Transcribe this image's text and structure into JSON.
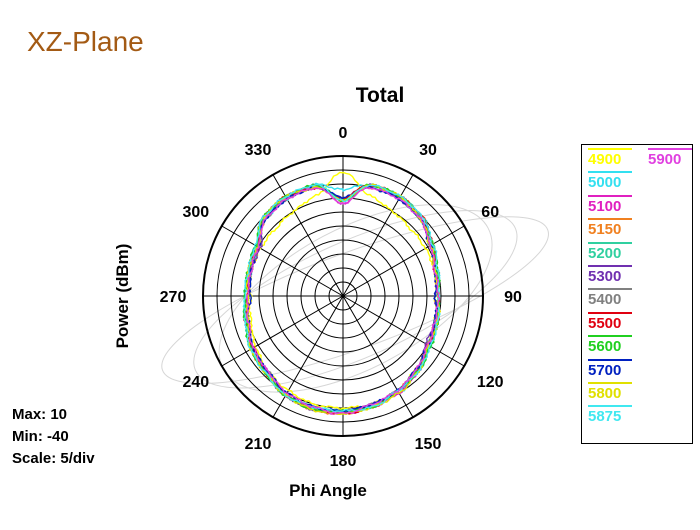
{
  "slide_title": "XZ-Plane",
  "chart_data": {
    "type": "polar-line",
    "title": "Total",
    "xlabel": "Phi Angle",
    "ylabel": "Power  (dBm)",
    "angle_ticks": [
      "0",
      "330",
      "300",
      "270",
      "240",
      "210",
      "180",
      "150",
      "120",
      "90",
      "60",
      "30"
    ],
    "r_range": [
      -40,
      10
    ],
    "r_step": 5,
    "grid": true,
    "legend_position": "right",
    "series": [
      {
        "name": "4900",
        "color": "#ffff00",
        "values": [
          4,
          -3,
          -5,
          -6,
          -6,
          -6,
          -7,
          -6,
          -4,
          -2,
          -1,
          0,
          0,
          0,
          -1,
          -3,
          -5,
          -6,
          -7,
          -6,
          -6,
          -6,
          -5,
          -3
        ]
      },
      {
        "name": "5000",
        "color": "#33e0f0",
        "values": [
          -2,
          1,
          0,
          -1,
          -5,
          -6,
          -6,
          -4,
          -3,
          -1,
          1,
          1,
          1,
          0,
          0,
          -2,
          -5,
          -6,
          -6,
          -5,
          -4,
          -1,
          0,
          1
        ]
      },
      {
        "name": "5100",
        "color": "#e020c0",
        "values": [
          -7,
          0,
          1,
          0,
          -5,
          -5,
          -6,
          -5,
          -3,
          -2,
          1,
          2,
          2,
          1,
          0,
          -2,
          -5,
          -6,
          -6,
          -6,
          -4,
          -1,
          1,
          1
        ]
      },
      {
        "name": "5150",
        "color": "#f08020",
        "values": [
          -6,
          0,
          1,
          -1,
          -5,
          -6,
          -6,
          -5,
          -2,
          -1,
          1,
          2,
          2,
          1,
          -1,
          -3,
          -5,
          -6,
          -6,
          -6,
          -3,
          0,
          1,
          0
        ]
      },
      {
        "name": "5200",
        "color": "#30d0a0",
        "values": [
          -6,
          1,
          0,
          0,
          -4,
          -5,
          -5,
          -4,
          -2,
          -1,
          1,
          1,
          1,
          1,
          -1,
          -2,
          -4,
          -5,
          -6,
          -6,
          -3,
          0,
          1,
          1
        ]
      },
      {
        "name": "5300",
        "color": "#7030b0",
        "values": [
          -5,
          0,
          1,
          0,
          -6,
          -6,
          -6,
          -5,
          -3,
          -1,
          1,
          2,
          1,
          0,
          -1,
          -2,
          -6,
          -6,
          -7,
          -6,
          -4,
          -1,
          0,
          1
        ]
      },
      {
        "name": "5400",
        "color": "#808080",
        "values": [
          -6,
          1,
          0,
          -1,
          -5,
          -6,
          -6,
          -5,
          -3,
          -2,
          1,
          2,
          1,
          0,
          -1,
          -3,
          -5,
          -6,
          -6,
          -5,
          -4,
          -1,
          0,
          1
        ]
      },
      {
        "name": "5500",
        "color": "#e00010",
        "values": [
          -5,
          0,
          1,
          0,
          -5,
          -5,
          -6,
          -4,
          -3,
          -1,
          1,
          1,
          2,
          1,
          -1,
          -2,
          -5,
          -5,
          -6,
          -6,
          -3,
          0,
          1,
          1
        ]
      },
      {
        "name": "5600",
        "color": "#20d020",
        "values": [
          -6,
          1,
          1,
          0,
          -4,
          -5,
          -5,
          -4,
          -2,
          -1,
          1,
          2,
          1,
          1,
          -1,
          -2,
          -4,
          -5,
          -6,
          -5,
          -3,
          -1,
          1,
          1
        ]
      },
      {
        "name": "5700",
        "color": "#0020c0",
        "values": [
          -5,
          0,
          0,
          -1,
          -5,
          -6,
          -7,
          -5,
          -3,
          -2,
          0,
          1,
          1,
          0,
          -1,
          -3,
          -5,
          -6,
          -7,
          -6,
          -4,
          -1,
          0,
          0
        ]
      },
      {
        "name": "5800",
        "color": "#e0e000",
        "values": [
          -6,
          0,
          1,
          0,
          -5,
          -5,
          -6,
          -5,
          -2,
          -1,
          1,
          2,
          2,
          1,
          0,
          -2,
          -5,
          -5,
          -6,
          -6,
          -4,
          -1,
          1,
          1
        ]
      },
      {
        "name": "5875",
        "color": "#40e8f0",
        "values": [
          -6,
          1,
          1,
          0,
          -4,
          -5,
          -5,
          -4,
          -2,
          -1,
          1,
          1,
          1,
          1,
          -1,
          -2,
          -4,
          -5,
          -6,
          -5,
          -3,
          0,
          1,
          1
        ]
      },
      {
        "name": "5900",
        "color": "#e040e0",
        "values": [
          -7,
          0,
          0,
          -1,
          -5,
          -6,
          -6,
          -5,
          -3,
          -2,
          0,
          1,
          2,
          0,
          -1,
          -3,
          -5,
          -6,
          -6,
          -6,
          -4,
          -1,
          0,
          0
        ]
      }
    ],
    "stats": {
      "max_label": "Max: 10",
      "min_label": "Min: -40",
      "scale_label": "Scale: 5/div"
    }
  }
}
